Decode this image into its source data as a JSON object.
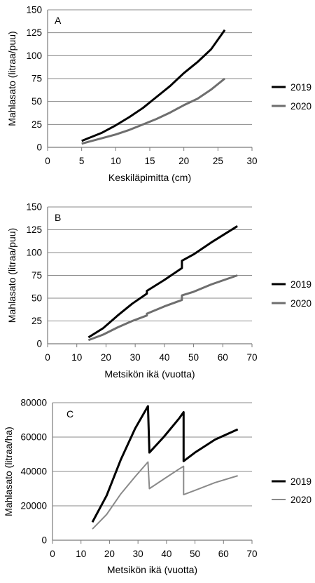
{
  "chart_data": [
    {
      "type": "line",
      "panel_label": "A",
      "xlabel": "Keskiläpimitta (cm)",
      "ylabel": "Mahlasato (litraa/puu)",
      "xlim": [
        0,
        30
      ],
      "ylim": [
        0,
        150
      ],
      "xticks": [
        "0",
        "5",
        "10",
        "15",
        "20",
        "25",
        "30"
      ],
      "yticks": [
        "0",
        "25",
        "50",
        "75",
        "100",
        "125",
        "150"
      ],
      "grid": "horizontal",
      "legend": "right",
      "series": [
        {
          "name": "2019",
          "color": "#000000",
          "width": 3,
          "points": [
            [
              5,
              7
            ],
            [
              8,
              16
            ],
            [
              10,
              24
            ],
            [
              12,
              33
            ],
            [
              14,
              43
            ],
            [
              16,
              55
            ],
            [
              18,
              67
            ],
            [
              20,
              81
            ],
            [
              22,
              93
            ],
            [
              24,
              107
            ],
            [
              26,
              128
            ]
          ]
        },
        {
          "name": "2020",
          "color": "#6e6e6e",
          "width": 3,
          "points": [
            [
              5,
              4
            ],
            [
              8,
              10
            ],
            [
              10,
              14
            ],
            [
              12,
              19
            ],
            [
              14,
              25
            ],
            [
              16,
              31
            ],
            [
              18,
              38
            ],
            [
              20,
              46
            ],
            [
              22,
              53
            ],
            [
              24,
              63
            ],
            [
              26,
              75
            ]
          ]
        }
      ]
    },
    {
      "type": "line",
      "panel_label": "B",
      "xlabel": "Metsikön ikä (vuotta)",
      "ylabel": "Mahlasato (litraa/puu)",
      "xlim": [
        0,
        70
      ],
      "ylim": [
        0,
        150
      ],
      "xticks": [
        "0",
        "10",
        "20",
        "30",
        "40",
        "50",
        "60",
        "70"
      ],
      "yticks": [
        "0",
        "25",
        "50",
        "75",
        "100",
        "125",
        "150"
      ],
      "grid": "horizontal",
      "legend": "right",
      "series": [
        {
          "name": "2019",
          "color": "#000000",
          "width": 3,
          "points": [
            [
              14,
              7
            ],
            [
              19,
              17
            ],
            [
              24,
              31
            ],
            [
              29,
              44
            ],
            [
              34,
              55
            ],
            [
              34,
              58
            ],
            [
              40,
              70
            ],
            [
              46,
              83
            ],
            [
              46,
              91
            ],
            [
              50,
              98
            ],
            [
              56,
              111
            ],
            [
              65,
              129
            ]
          ]
        },
        {
          "name": "2020",
          "color": "#6e6e6e",
          "width": 3,
          "points": [
            [
              14,
              4
            ],
            [
              19,
              10
            ],
            [
              24,
              18
            ],
            [
              29,
              25
            ],
            [
              34,
              31
            ],
            [
              34,
              33
            ],
            [
              40,
              41
            ],
            [
              46,
              48
            ],
            [
              46,
              53
            ],
            [
              50,
              57
            ],
            [
              56,
              65
            ],
            [
              65,
              75
            ]
          ]
        }
      ]
    },
    {
      "type": "line",
      "panel_label": "C",
      "xlabel": "Metsikön ikä (vuotta)",
      "ylabel": "Mahlasato (litraa/ha)",
      "xlim": [
        0,
        70
      ],
      "ylim": [
        0,
        80000
      ],
      "xticks": [
        "0",
        "10",
        "20",
        "30",
        "40",
        "50",
        "60",
        "70"
      ],
      "yticks": [
        "0",
        "20000",
        "40000",
        "60000",
        "80000"
      ],
      "grid": "horizontal",
      "legend": "right",
      "series": [
        {
          "name": "2019",
          "color": "#000000",
          "width": 3,
          "points": [
            [
              14,
              10500
            ],
            [
              19,
              26000
            ],
            [
              24,
              47000
            ],
            [
              29,
              65000
            ],
            [
              33.5,
              78000
            ],
            [
              34,
              51000
            ],
            [
              39,
              60000
            ],
            [
              44.5,
              71000
            ],
            [
              46,
              74500
            ],
            [
              46,
              46000
            ],
            [
              50,
              51000
            ],
            [
              57,
              58500
            ],
            [
              65,
              64500
            ]
          ]
        },
        {
          "name": "2020",
          "color": "#8a8a8a",
          "width": 2,
          "points": [
            [
              14,
              6500
            ],
            [
              19,
              15000
            ],
            [
              24,
              27000
            ],
            [
              29,
              37000
            ],
            [
              33.5,
              45500
            ],
            [
              34,
              30000
            ],
            [
              39,
              35500
            ],
            [
              44.5,
              41500
            ],
            [
              46,
              43000
            ],
            [
              46,
              26500
            ],
            [
              50,
              29000
            ],
            [
              57,
              33500
            ],
            [
              65,
              37500
            ]
          ]
        }
      ]
    }
  ]
}
